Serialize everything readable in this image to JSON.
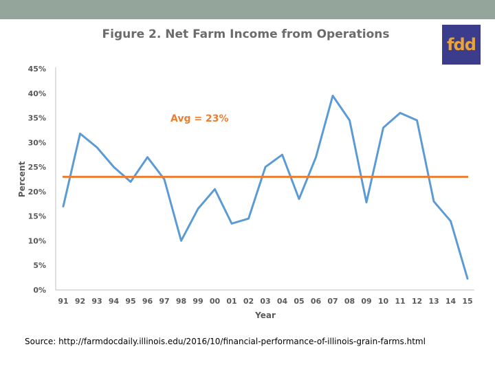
{
  "logo_text": "fdd",
  "source_text": "Source: http://farmdocdaily.illinois.edu/2016/10/financial-performance-of-illinois-grain-farms.html",
  "chart_data": {
    "type": "line",
    "title": "Figure 2. Net Farm Income from Operations",
    "xlabel": "Year",
    "ylabel": "Percent",
    "categories": [
      "91",
      "92",
      "93",
      "94",
      "95",
      "96",
      "97",
      "98",
      "99",
      "00",
      "01",
      "02",
      "03",
      "04",
      "05",
      "06",
      "07",
      "08",
      "09",
      "10",
      "11",
      "12",
      "13",
      "14",
      "15"
    ],
    "values": [
      17,
      31.8,
      29,
      25,
      22,
      27,
      22.5,
      10,
      16.5,
      20.5,
      13.5,
      14.5,
      25,
      27.5,
      18.5,
      27,
      39.5,
      34.5,
      17.8,
      33,
      36,
      34.5,
      18,
      14,
      2.3
    ],
    "y_ticks": [
      "0%",
      "5%",
      "10%",
      "15%",
      "20%",
      "25%",
      "30%",
      "35%",
      "40%",
      "45%"
    ],
    "ylim": [
      0,
      45
    ],
    "average": {
      "value": 23,
      "label": "Avg = 23%"
    },
    "colors": {
      "series": "#5b9bd5",
      "average": "#ed7d31",
      "axis": "#bfbfbf",
      "label": "#595959"
    },
    "grid": false,
    "legend": "none"
  }
}
